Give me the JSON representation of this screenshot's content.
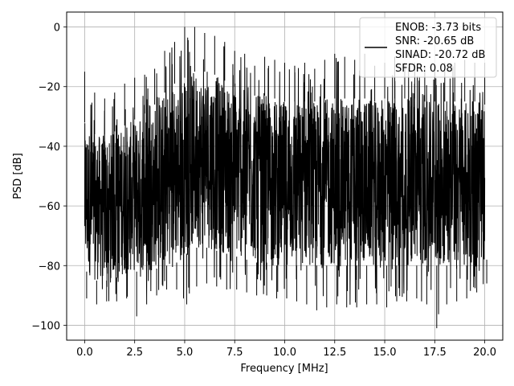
{
  "chart_data": {
    "type": "line",
    "xlabel": "Frequency [MHz]",
    "ylabel": "PSD [dB]",
    "xlim": [
      -0.9,
      20.9
    ],
    "ylim": [
      -105,
      5
    ],
    "xticks": [
      0.0,
      2.5,
      5.0,
      7.5,
      10.0,
      12.5,
      15.0,
      17.5,
      20.0
    ],
    "xtick_labels": [
      "0.0",
      "2.5",
      "5.0",
      "7.5",
      "10.0",
      "12.5",
      "15.0",
      "17.5",
      "20.0"
    ],
    "yticks": [
      0,
      -20,
      -40,
      -60,
      -80,
      -100
    ],
    "ytick_labels": [
      "0",
      "−20",
      "−40",
      "−60",
      "−80",
      "−100"
    ],
    "grid": true,
    "legend_position": "top-right",
    "series": [
      {
        "color": "#000000",
        "legend": [
          "ENOB: -3.73 bits",
          "SNR: -20.65 dB",
          "SINAD: -20.72 dB",
          "SFDR: 0.08"
        ],
        "envelope": {
          "x": [
            0.0,
            0.5,
            1.0,
            1.5,
            2.0,
            2.5,
            3.0,
            3.5,
            4.0,
            4.5,
            5.0,
            5.5,
            6.0,
            6.5,
            7.0,
            7.5,
            8.0,
            8.5,
            9.0,
            9.5,
            10.0,
            10.5,
            11.0,
            11.5,
            12.0,
            12.5,
            13.0,
            13.5,
            14.0,
            14.5,
            15.0,
            15.5,
            16.0,
            16.5,
            17.0,
            17.5,
            18.0,
            18.5,
            19.0,
            19.5,
            20.0
          ],
          "peak": [
            -15,
            -22,
            -24,
            -22,
            -19,
            -17,
            -16,
            -14,
            -8,
            -5,
            0,
            0,
            -2,
            -3,
            -5,
            -8,
            -9,
            -13,
            -10,
            -11,
            -12,
            -13,
            -12,
            -14,
            -11,
            -9,
            -10,
            -11,
            -9,
            -13,
            -12,
            -10,
            -12,
            -12,
            -13,
            -14,
            -12,
            -12,
            -11,
            -12,
            -12
          ],
          "upper": [
            -32,
            -36,
            -36,
            -35,
            -33,
            -31,
            -29,
            -26,
            -22,
            -19,
            -17,
            -15,
            -15,
            -16,
            -18,
            -20,
            -21,
            -23,
            -23,
            -24,
            -25,
            -25,
            -25,
            -25,
            -24,
            -24,
            -24,
            -24,
            -24,
            -25,
            -24,
            -24,
            -24,
            -24,
            -25,
            -25,
            -25,
            -25,
            -25,
            -25,
            -26
          ],
          "lower": [
            -82,
            -85,
            -85,
            -84,
            -83,
            -82,
            -82,
            -81,
            -80,
            -79,
            -76,
            -74,
            -74,
            -75,
            -76,
            -77,
            -78,
            -79,
            -79,
            -80,
            -80,
            -80,
            -80,
            -80,
            -80,
            -80,
            -80,
            -80,
            -80,
            -80,
            -80,
            -80,
            -80,
            -80,
            -80,
            -80,
            -80,
            -80,
            -80,
            -79,
            -78
          ],
          "trough": [
            -91,
            -93,
            -92,
            -92,
            -91,
            -97,
            -93,
            -90,
            -88,
            -88,
            -93,
            -87,
            -86,
            -87,
            -88,
            -88,
            -89,
            -90,
            -90,
            -91,
            -91,
            -92,
            -93,
            -95,
            -94,
            -93,
            -94,
            -94,
            -93,
            -93,
            -94,
            -92,
            -92,
            -91,
            -93,
            -101,
            -93,
            -92,
            -91,
            -89,
            -86
          ]
        }
      }
    ]
  }
}
